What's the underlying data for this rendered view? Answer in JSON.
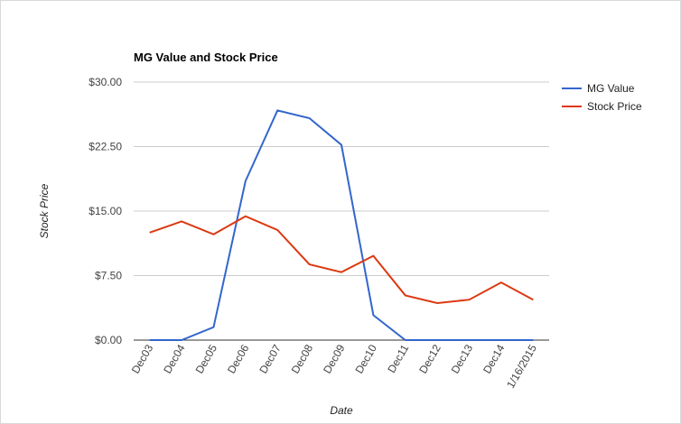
{
  "chart_data": {
    "type": "line",
    "title": "MG Value and Stock Price",
    "x_label": "Date",
    "y_label": "Stock Price",
    "categories": [
      "Dec03",
      "Dec04",
      "Dec05",
      "Dec06",
      "Dec07",
      "Dec08",
      "Dec09",
      "Dec10",
      "Dec11",
      "Dec12",
      "Dec13",
      "Dec14",
      "1/16/2015"
    ],
    "series": [
      {
        "name": "MG Value",
        "color": "#3366cc",
        "values": [
          0,
          0,
          1.5,
          18.5,
          26.7,
          25.8,
          22.7,
          2.9,
          0,
          0,
          0,
          0,
          0
        ]
      },
      {
        "name": "Stock Price",
        "color": "#dc3912",
        "values": [
          12.5,
          13.8,
          12.3,
          14.4,
          12.8,
          8.8,
          7.9,
          9.8,
          5.2,
          4.3,
          4.7,
          6.7,
          4.7
        ]
      }
    ],
    "ylim": [
      0,
      30
    ],
    "yticks": [
      {
        "value": 0,
        "label": "$0.00"
      },
      {
        "value": 7.5,
        "label": "$7.50"
      },
      {
        "value": 15,
        "label": "$15.00"
      },
      {
        "value": 22.5,
        "label": "$22.50"
      },
      {
        "value": 30,
        "label": "$30.00"
      }
    ],
    "grid": true,
    "legend": "right"
  }
}
